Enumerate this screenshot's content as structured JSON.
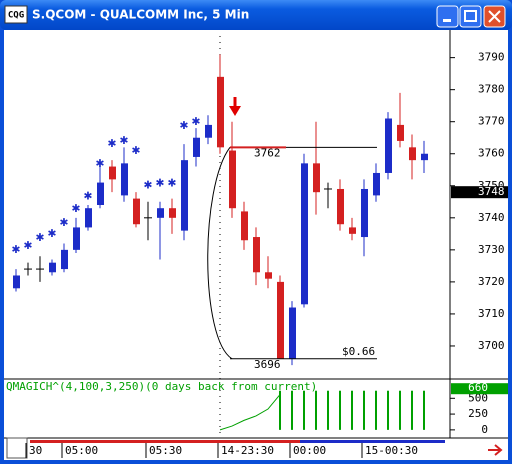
{
  "window": {
    "title": "S.QCOM - QUALCOMM Inc, 5 Min",
    "icon": "CQG"
  },
  "chart_data": {
    "type": "candlestick",
    "categories": [
      null,
      "30",
      null,
      null,
      "05:00",
      null,
      null,
      null,
      null,
      null,
      null,
      "05:30",
      null,
      null,
      null,
      null,
      null,
      "14-23:30",
      null,
      null,
      null,
      null,
      null,
      "00:00",
      null,
      null,
      null,
      null,
      null,
      "15-00:30",
      null,
      null,
      null,
      null,
      null
    ],
    "open": [
      3718,
      3724,
      3724,
      3723,
      3724,
      3730,
      3737,
      3744,
      3756,
      3747,
      3746,
      3740,
      3740,
      3743,
      3736,
      3759,
      3765,
      3784,
      3761,
      3742,
      3734,
      3723,
      3720,
      3696,
      3713,
      3757,
      3749,
      3749,
      3737,
      3734,
      3747,
      3754,
      3769,
      3762,
      3758
    ],
    "high": [
      3724,
      3726,
      3728,
      3727,
      3732,
      3740,
      3744,
      3758,
      3758,
      3762,
      3748,
      3745,
      3745,
      3746,
      3763,
      3768,
      3772,
      3791,
      3770,
      3745,
      3737,
      3728,
      3722,
      3714,
      3760,
      3770,
      3751,
      3752,
      3740,
      3752,
      3757,
      3773,
      3779,
      3766,
      3764
    ],
    "low": [
      3717,
      3722,
      3720,
      3722,
      3723,
      3729,
      3736,
      3743,
      3748,
      3745,
      3737,
      3733,
      3727,
      3735,
      3733,
      3756,
      3763,
      3760,
      3740,
      3730,
      3719,
      3718,
      3696,
      3694,
      3712,
      3741,
      3743,
      3736,
      3733,
      3728,
      3745,
      3752,
      3762,
      3752,
      3754
    ],
    "close": [
      3722,
      3724,
      3724,
      3726,
      3730,
      3737,
      3743,
      3751,
      3752,
      3757,
      3738,
      3740,
      3743,
      3740,
      3758,
      3765,
      3769,
      3762,
      3743,
      3733,
      3723,
      3721,
      3696,
      3712,
      3757,
      3748,
      3749,
      3738,
      3735,
      3749,
      3754,
      3771,
      3764,
      3758,
      3760
    ],
    "up_color": "#1c2cc8",
    "down_color": "#d42020",
    "markers": {
      "color": "#1c2cc8",
      "values": [
        3730.6,
        3731.8,
        3734.3,
        3735.6,
        3739,
        3743.3,
        3747.3,
        3757.5,
        3763.7,
        3764.6,
        3761.5,
        3750.7,
        3751.3,
        3751.3,
        3769.3,
        3770.5
      ]
    },
    "ylim": [
      3690,
      3798
    ],
    "yticks": [
      3700,
      3710,
      3720,
      3730,
      3740,
      3750,
      3760,
      3770,
      3780,
      3790
    ],
    "last_price": 3748,
    "high_label": 3762,
    "low_label": 3696,
    "range_label": "$0.66",
    "indicator": {
      "title": "QMAGICH^(4,100,3,250)(0 days back from current)",
      "color": "#00a000",
      "line_values": [
        null,
        null,
        null,
        null,
        null,
        null,
        null,
        null,
        null,
        null,
        null,
        null,
        null,
        null,
        null,
        null,
        null,
        0,
        60,
        150,
        220,
        330,
        560,
        null,
        null,
        null,
        null,
        null,
        null,
        null,
        null,
        null,
        null,
        null,
        null
      ],
      "bar_values": [
        null,
        null,
        null,
        null,
        null,
        null,
        null,
        null,
        null,
        null,
        null,
        null,
        null,
        null,
        null,
        null,
        null,
        null,
        null,
        null,
        null,
        null,
        620,
        620,
        620,
        620,
        620,
        620,
        620,
        620,
        620,
        620,
        620,
        620,
        620
      ],
      "ylim": [
        -113,
        774
      ],
      "yticks": [
        0,
        250,
        500
      ],
      "last_value": 660
    }
  }
}
